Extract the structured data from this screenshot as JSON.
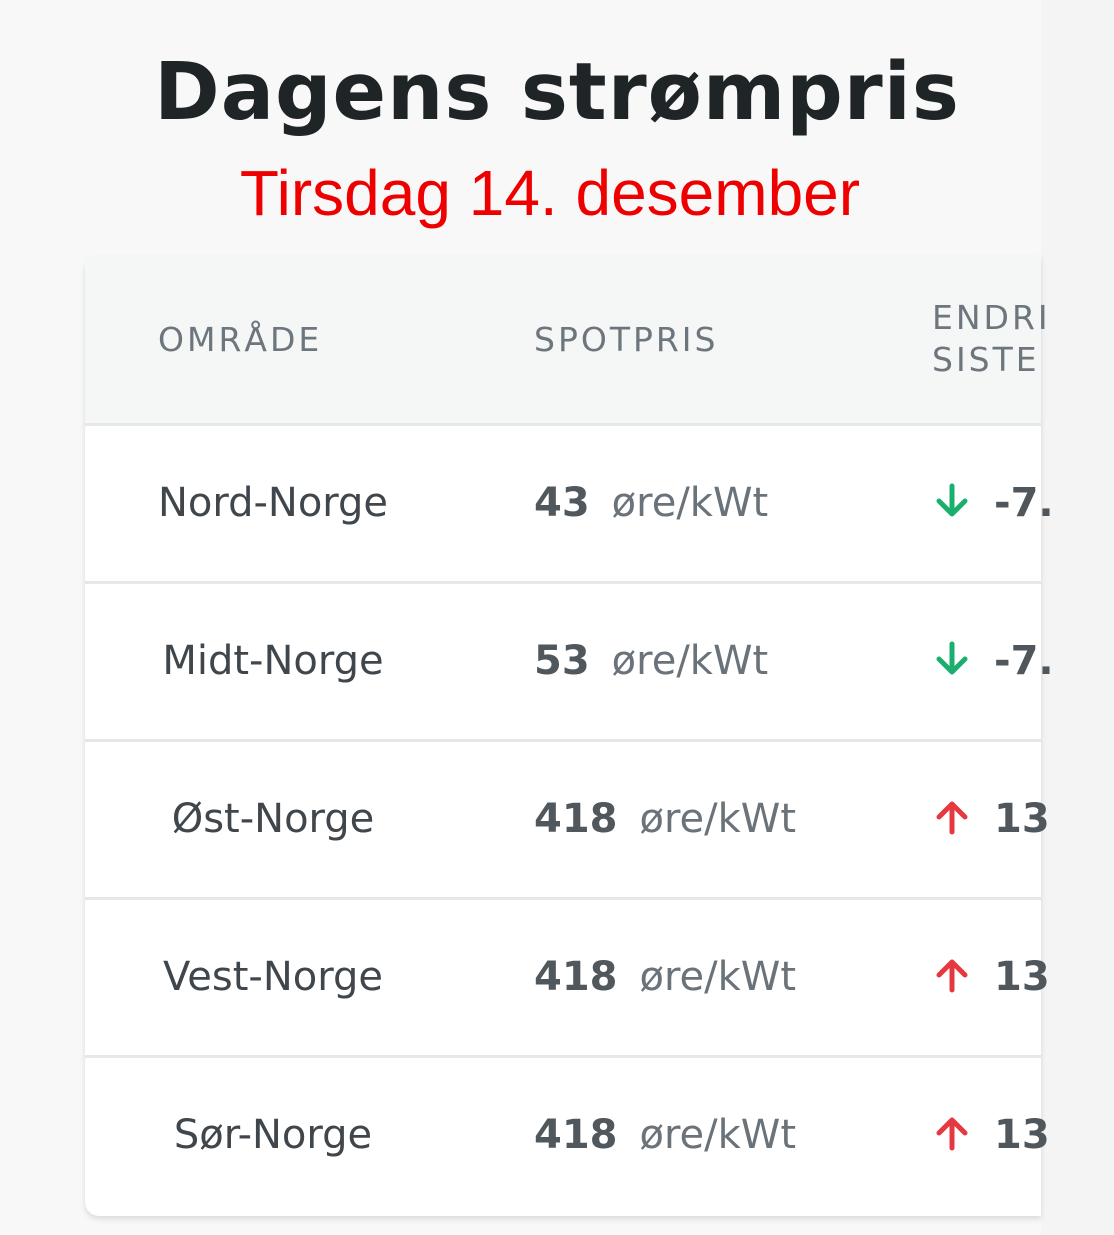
{
  "title": "Dagens strømpris",
  "subtitle": "Tirsdag 14. desember",
  "table": {
    "headers": {
      "area": "OMRÅDE",
      "spot": "SPOTPRIS",
      "change_line1": "ENDRI",
      "change_line2": "SISTE"
    },
    "rows": [
      {
        "area": "Nord-Norge",
        "value": "43",
        "unit": "øre/kWt",
        "direction": "down",
        "change": "-7."
      },
      {
        "area": "Midt-Norge",
        "value": "53",
        "unit": "øre/kWt",
        "direction": "down",
        "change": "-7."
      },
      {
        "area": "Øst-Norge",
        "value": "418",
        "unit": "øre/kWt",
        "direction": "up",
        "change": "13"
      },
      {
        "area": "Vest-Norge",
        "value": "418",
        "unit": "øre/kWt",
        "direction": "up",
        "change": "13"
      },
      {
        "area": "Sør-Norge",
        "value": "418",
        "unit": "øre/kWt",
        "direction": "up",
        "change": "13"
      }
    ]
  },
  "colors": {
    "title": "#1f2427",
    "subtitle": "#ee0000",
    "arrow_down": "#1aae6f",
    "arrow_up": "#e5393f",
    "header_bg": "#f5f6f6"
  }
}
